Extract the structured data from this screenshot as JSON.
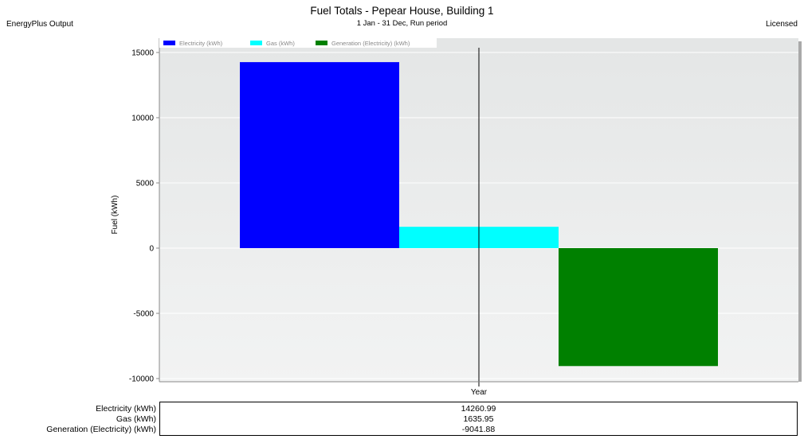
{
  "header": {
    "left_text": "EnergyPlus Output",
    "right_text": "Licensed"
  },
  "chart_data": {
    "type": "bar",
    "title": "Fuel Totals - Pepear House, Building 1",
    "subtitle": "1 Jan - 31 Dec, Run period",
    "xlabel": "Year",
    "ylabel": "Fuel (kWh)",
    "ylim": [
      -10000,
      15000
    ],
    "yticks": [
      15000,
      10000,
      5000,
      0,
      -5000,
      -10000
    ],
    "grid": true,
    "legend_position": "top-left",
    "series": [
      {
        "name": "Electricity (kWh)",
        "color": "#0000ff",
        "value": 14260.99,
        "value_label": "14260.99"
      },
      {
        "name": "Gas (kWh)",
        "color": "#00ffff",
        "value": 1635.95,
        "value_label": "1635.95"
      },
      {
        "name": "Generation (Electricity) (kWh)",
        "color": "#008000",
        "value": -9041.88,
        "value_label": "-9041.88"
      }
    ]
  }
}
